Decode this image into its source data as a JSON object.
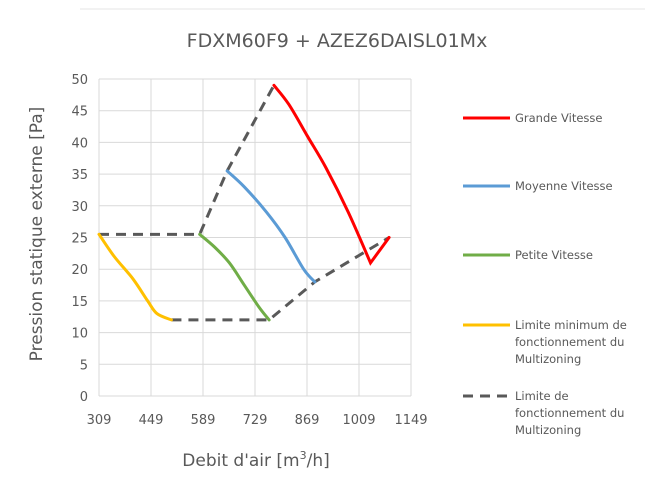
{
  "chart_data": {
    "type": "line",
    "title": "FDXM60F9 + AZEZ6DAISL01Mx",
    "xlabel": "Debit d'air [m",
    "xlabel_sup": "3",
    "xlabel_end": "/h]",
    "ylabel": "Pression statique externe [Pa]",
    "xlim": [
      309,
      1149
    ],
    "ylim": [
      0,
      50
    ],
    "x_ticks": [
      309,
      449,
      589,
      729,
      869,
      1009,
      1149
    ],
    "y_ticks": [
      0,
      5,
      10,
      15,
      20,
      25,
      30,
      35,
      40,
      45,
      50
    ],
    "grid": true,
    "legend_position": "right",
    "series": [
      {
        "name": "Grande Vitesse",
        "color": "#ff0000",
        "style": "solid",
        "points": [
          [
            780,
            49
          ],
          [
            820,
            46
          ],
          [
            870,
            41
          ],
          [
            920,
            36
          ],
          [
            980,
            29
          ],
          [
            1040,
            21
          ],
          [
            1090,
            25
          ]
        ]
      },
      {
        "name": "Moyenne Vitesse",
        "color": "#5b9bd5",
        "style": "solid",
        "points": [
          [
            654,
            35.5
          ],
          [
            700,
            33
          ],
          [
            760,
            29
          ],
          [
            810,
            25
          ],
          [
            860,
            20
          ],
          [
            890,
            18
          ]
        ]
      },
      {
        "name": "Petite Vitesse",
        "color": "#70ad47",
        "style": "solid",
        "points": [
          [
            580,
            25.5
          ],
          [
            620,
            23.5
          ],
          [
            660,
            21
          ],
          [
            700,
            17.5
          ],
          [
            740,
            14
          ],
          [
            767,
            12
          ]
        ]
      },
      {
        "name": "Limite minimum de fonctionnement du Multizoning",
        "legend_lines": [
          "Limite minimum de",
          "fonctionnement du",
          "Multizoning"
        ],
        "color": "#ffc000",
        "style": "solid",
        "points": [
          [
            309,
            25.5
          ],
          [
            350,
            22
          ],
          [
            400,
            18.5
          ],
          [
            440,
            15
          ],
          [
            465,
            13
          ],
          [
            504,
            12
          ]
        ]
      },
      {
        "name": "Limite de fonctionnement du Multizoning",
        "legend_lines": [
          "Limite de",
          "fonctionnement du",
          "Multizoning"
        ],
        "color": "#595959",
        "style": "dashed",
        "points": [
          [
            309,
            25.5
          ],
          [
            580,
            25.5
          ],
          [
            654,
            35.5
          ],
          [
            780,
            49
          ]
        ],
        "points2": [
          [
            504,
            12
          ],
          [
            767,
            12
          ],
          [
            890,
            18
          ],
          [
            1090,
            25
          ]
        ]
      }
    ]
  }
}
